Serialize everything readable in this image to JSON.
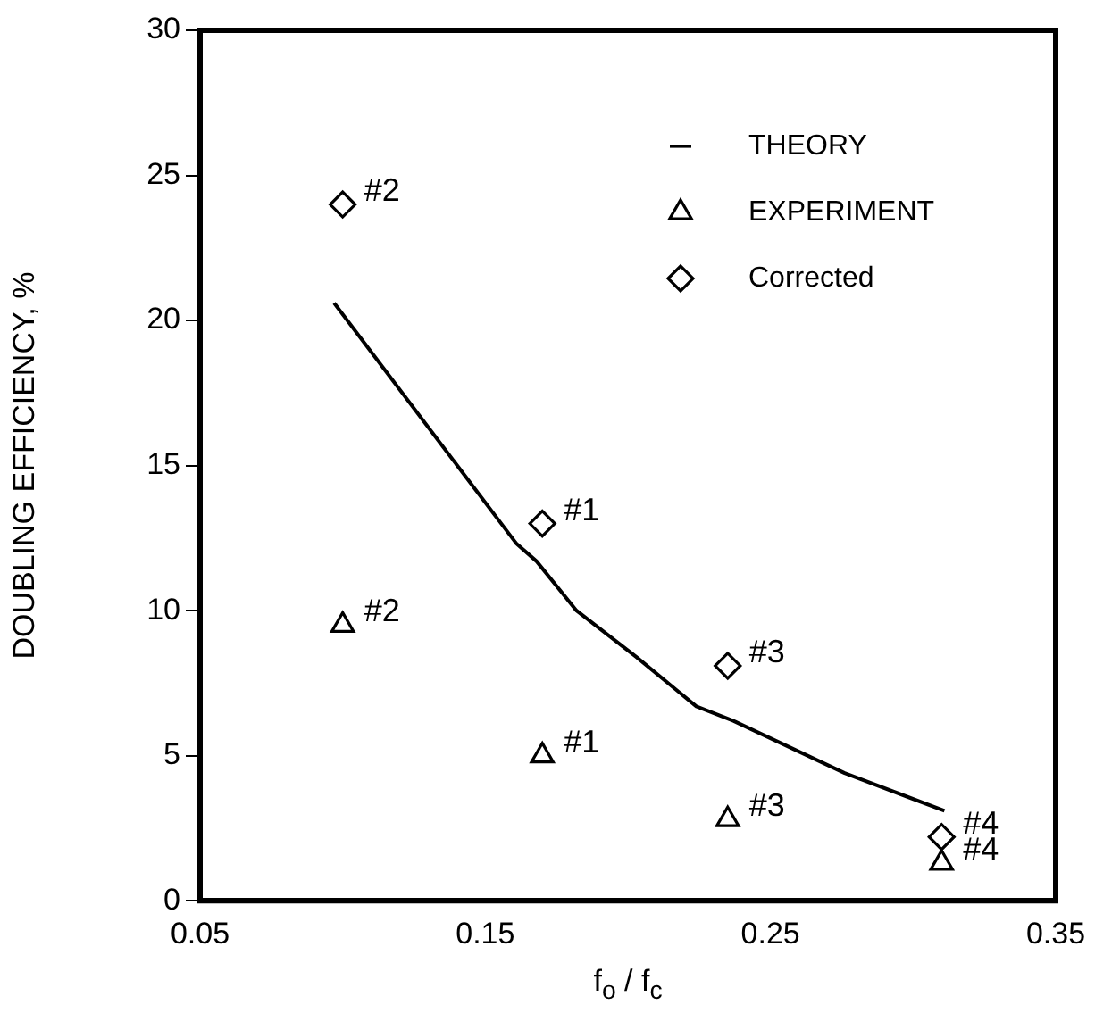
{
  "chart_data": {
    "type": "scatter",
    "xlabel": "f$_{o}$ / f$_{c}$",
    "ylabel": "DOUBLING EFFICIENCY, %",
    "xlim": [
      0.05,
      0.35
    ],
    "xticks": [
      0.05,
      0.15,
      0.25,
      0.35
    ],
    "ylim": [
      0,
      30
    ],
    "yticks": [
      0,
      5,
      10,
      15,
      20,
      25,
      30
    ],
    "grid": false,
    "legend": "top right",
    "series": [
      {
        "name": "THEORY",
        "type": "line",
        "marker": "none",
        "line_style": "solid",
        "color": "#000000",
        "x": [
          0.097,
          0.161,
          0.168,
          0.182,
          0.203,
          0.224,
          0.237,
          0.276,
          0.311
        ],
        "values": [
          20.6,
          12.3,
          11.7,
          10,
          8.4,
          6.7,
          6.2,
          4.4,
          3.1
        ]
      },
      {
        "name": "EXPERIMENT",
        "marker": "triangle",
        "color": "#000000",
        "x": [
          0.1,
          0.17,
          0.235,
          0.31
        ],
        "values": [
          9.5,
          5,
          2.8,
          1.3
        ]
      },
      {
        "name": "Corrected",
        "marker": "diamond",
        "color": "#000000",
        "x": [
          0.1,
          0.17,
          0.235,
          0.31
        ],
        "values": [
          24,
          13,
          8.1,
          2.2
        ]
      }
    ],
    "annotations": [
      {
        "text": "#2",
        "x": 0.1,
        "y": 24
      },
      {
        "text": "#1",
        "x": 0.17,
        "y": 13
      },
      {
        "text": "#3",
        "x": 0.235,
        "y": 8.1
      },
      {
        "text": "#4",
        "x": 0.31,
        "y": 2.2
      },
      {
        "text": "#2",
        "x": 0.1,
        "y": 9.5
      },
      {
        "text": "#1",
        "x": 0.17,
        "y": 5
      },
      {
        "text": "#3",
        "x": 0.235,
        "y": 2.8
      },
      {
        "text": "#4",
        "x": 0.31,
        "y": 1.3
      }
    ]
  }
}
